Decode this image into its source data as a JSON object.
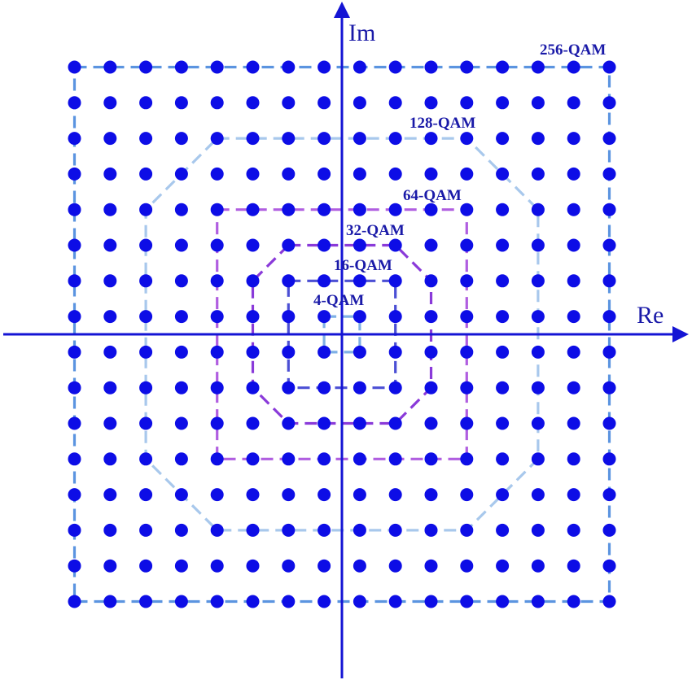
{
  "axes": {
    "x_label": "Re",
    "y_label": "Im"
  },
  "colors": {
    "axis": "#1414d4",
    "point": "#0d0de6",
    "label_text": "#1a1aa8"
  },
  "constellation": {
    "grid_size": 16,
    "levels": [
      -15,
      -13,
      -11,
      -9,
      -7,
      -5,
      -3,
      -1,
      1,
      3,
      5,
      7,
      9,
      11,
      13,
      15
    ],
    "point_count": 256
  },
  "boundaries": [
    {
      "id": "4-qam",
      "label": "4-QAM",
      "color": "#7fb0e6",
      "shape": "square",
      "extent": 1
    },
    {
      "id": "16-qam",
      "label": "16-QAM",
      "color": "#4b4fd4",
      "shape": "square",
      "extent": 3
    },
    {
      "id": "32-qam",
      "label": "32-QAM",
      "color": "#8a3ad9",
      "shape": "octagon",
      "extent": 5,
      "corner": 3
    },
    {
      "id": "64-qam",
      "label": "64-QAM",
      "color": "#b05ee0",
      "shape": "square",
      "extent": 7
    },
    {
      "id": "128-qam",
      "label": "128-QAM",
      "color": "#a8c8ec",
      "shape": "octagon",
      "extent": 11,
      "corner": 7
    },
    {
      "id": "256-qam",
      "label": "256-QAM",
      "color": "#5b94e0",
      "shape": "square",
      "extent": 15
    }
  ]
}
